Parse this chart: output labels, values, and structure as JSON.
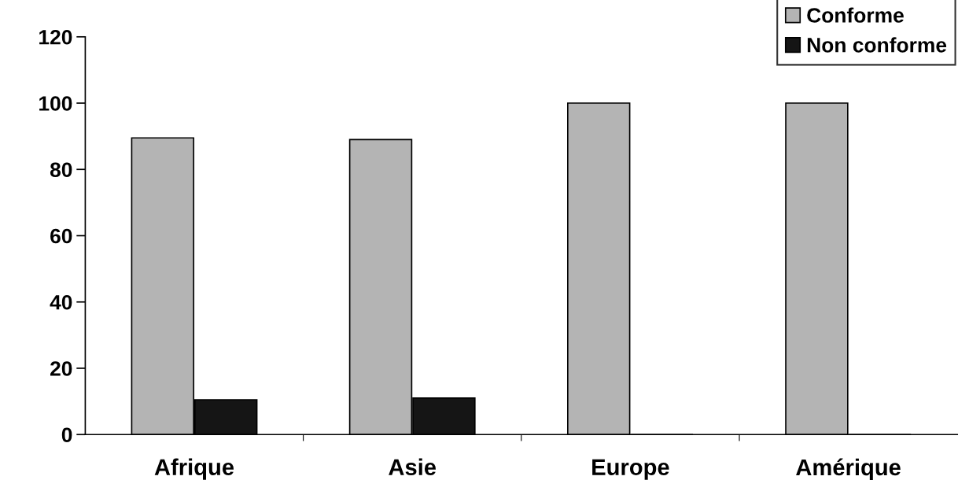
{
  "chart_data": {
    "type": "bar",
    "categories": [
      "Afrique",
      "Asie",
      "Europe",
      "Amérique"
    ],
    "series": [
      {
        "name": "Conforme",
        "color": "#b4b4b4",
        "values": [
          89.5,
          89,
          100,
          100
        ]
      },
      {
        "name": "Non conforme",
        "color": "#151515",
        "values": [
          10.5,
          11,
          0,
          0
        ]
      }
    ],
    "ylim": [
      0,
      120
    ],
    "yticks": [
      0,
      20,
      40,
      60,
      80,
      100,
      120
    ],
    "grid": false,
    "legend": "top right"
  }
}
